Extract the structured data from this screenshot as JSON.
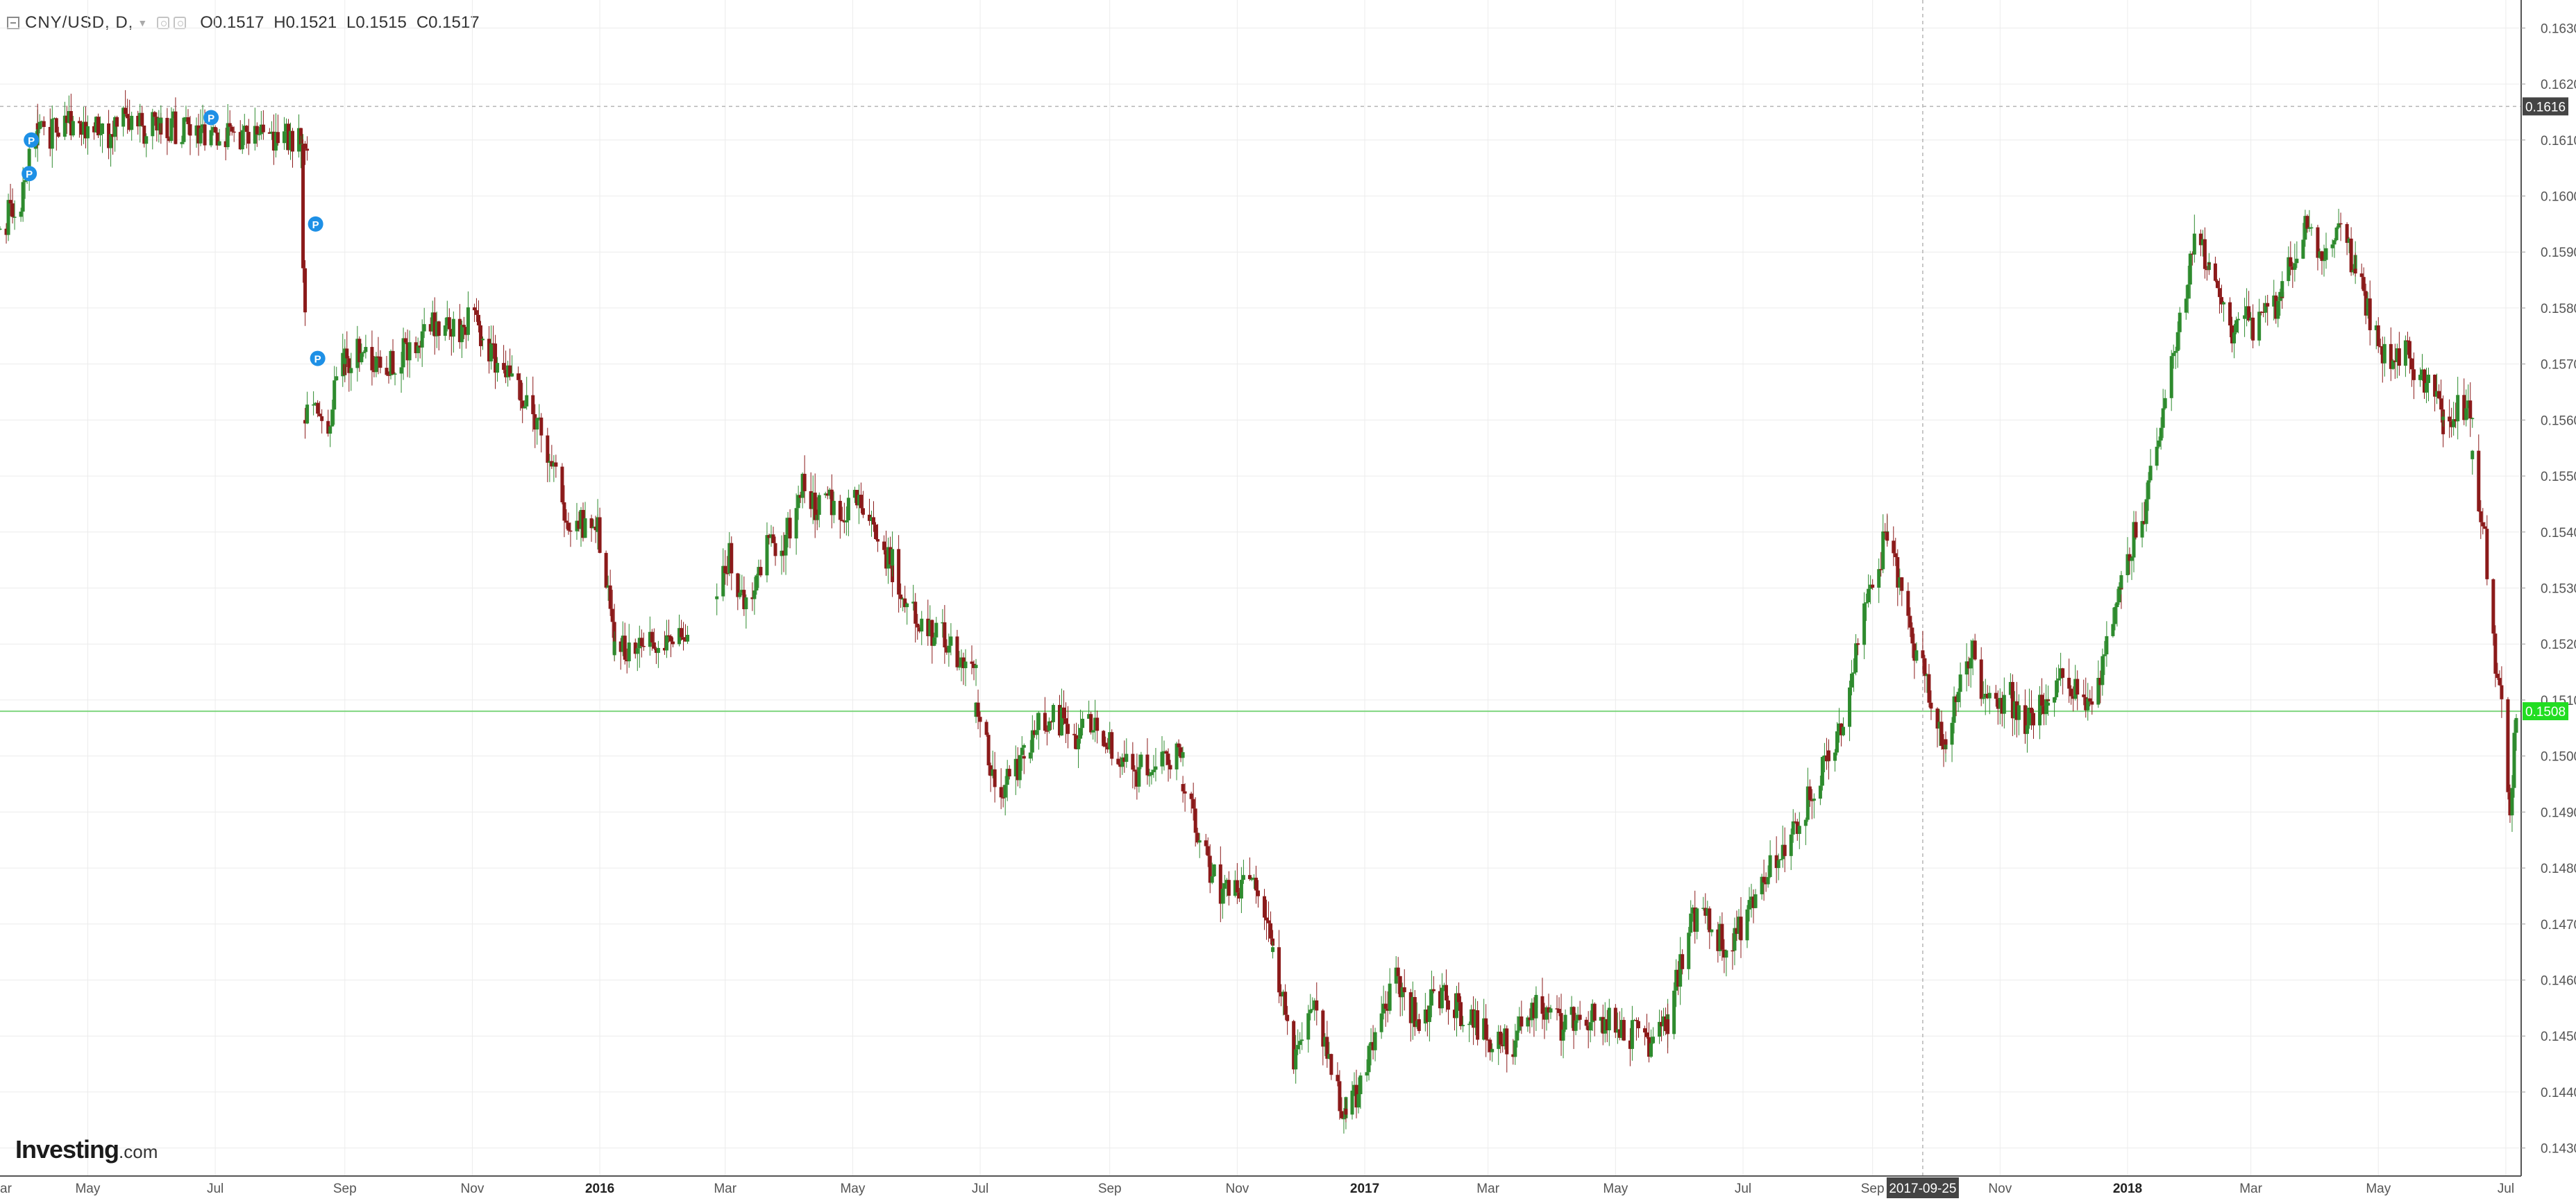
{
  "legend": {
    "symbol": "CNY/USD, D,",
    "open_label": "O",
    "open": "0.1517",
    "high_label": "H",
    "high": "0.1521",
    "low_label": "L",
    "low": "0.1515",
    "close_label": "C",
    "close": "0.1517"
  },
  "watermark": {
    "brand": "Investing",
    "suffix": ".com"
  },
  "colors": {
    "up": "#2e8b2e",
    "down": "#8b1a1a",
    "grid": "#ececec",
    "axis_text": "#555555",
    "current_price_line": "#7fd67f",
    "current_price_label_bg": "#22dd22",
    "hover_label_bg": "#444444",
    "marker": "#1e90e6"
  },
  "crosshair": {
    "date_label": "2017-09-25",
    "price_label": "0.1616"
  },
  "current_price_label": "0.1508",
  "chart_data": {
    "type": "candlestick",
    "title": "",
    "xlabel": "",
    "ylabel": "",
    "ylim": [
      0.1425,
      0.1635
    ],
    "xlim": [
      "2015-03-20",
      "2018-07-08"
    ],
    "grid": true,
    "crosshair": {
      "date": "2017-09-25",
      "price": 0.1616
    },
    "current_price": 0.1508,
    "y_ticks": [
      "0.1430",
      "0.1440",
      "0.1450",
      "0.1460",
      "0.1470",
      "0.1480",
      "0.1490",
      "0.1500",
      "0.1510",
      "0.1520",
      "0.1530",
      "0.1540",
      "0.1550",
      "0.1560",
      "0.1570",
      "0.1580",
      "0.1590",
      "0.1600",
      "0.1610",
      "0.1620",
      "0.1630"
    ],
    "x_ticks": [
      {
        "label": "ar",
        "date": "2015-03-15",
        "bold": false
      },
      {
        "label": "May",
        "date": "2015-05-01",
        "bold": false
      },
      {
        "label": "Jul",
        "date": "2015-07-01",
        "bold": false
      },
      {
        "label": "Sep",
        "date": "2015-09-01",
        "bold": false
      },
      {
        "label": "Nov",
        "date": "2015-11-01",
        "bold": false
      },
      {
        "label": "2016",
        "date": "2016-01-01",
        "bold": true
      },
      {
        "label": "Mar",
        "date": "2016-03-01",
        "bold": false
      },
      {
        "label": "May",
        "date": "2016-05-01",
        "bold": false
      },
      {
        "label": "Jul",
        "date": "2016-07-01",
        "bold": false
      },
      {
        "label": "Sep",
        "date": "2016-09-01",
        "bold": false
      },
      {
        "label": "Nov",
        "date": "2016-11-01",
        "bold": false
      },
      {
        "label": "2017",
        "date": "2017-01-01",
        "bold": true
      },
      {
        "label": "Mar",
        "date": "2017-03-01",
        "bold": false
      },
      {
        "label": "May",
        "date": "2017-05-01",
        "bold": false
      },
      {
        "label": "Jul",
        "date": "2017-07-01",
        "bold": false
      },
      {
        "label": "Sep",
        "date": "2017-09-01",
        "bold": false
      },
      {
        "label": "Nov",
        "date": "2017-11-01",
        "bold": false
      },
      {
        "label": "2018",
        "date": "2018-01-01",
        "bold": true
      },
      {
        "label": "Mar",
        "date": "2018-03-01",
        "bold": false
      },
      {
        "label": "May",
        "date": "2018-05-01",
        "bold": false
      },
      {
        "label": "Jul",
        "date": "2018-07-01",
        "bold": false
      }
    ],
    "markers": [
      {
        "label": "P",
        "date": "2015-04-03",
        "price": 0.1604
      },
      {
        "label": "P",
        "date": "2015-04-04",
        "price": 0.161
      },
      {
        "label": "P",
        "date": "2015-06-29",
        "price": 0.1614
      },
      {
        "label": "P",
        "date": "2015-08-18",
        "price": 0.1595
      },
      {
        "label": "P",
        "date": "2015-08-19",
        "price": 0.1571
      }
    ],
    "segments": [
      {
        "start": "2015-03-20",
        "end": "2015-04-07",
        "values": [
          0.1594,
          0.1596,
          0.1597,
          0.1598,
          0.1602,
          0.1609,
          0.1613
        ]
      },
      {
        "start": "2015-04-07",
        "end": "2015-06-05",
        "values": [
          0.1613,
          0.1611,
          0.1612,
          0.1614,
          0.1613,
          0.1611,
          0.1611,
          0.1613,
          0.1612,
          0.1612,
          0.1613
        ]
      },
      {
        "start": "2015-06-05",
        "end": "2015-08-14",
        "values": [
          0.1613,
          0.1612,
          0.1611,
          0.1611,
          0.161,
          0.1611,
          0.1611,
          0.161,
          0.161,
          0.161,
          0.161
        ]
      },
      {
        "start": "2015-08-11",
        "end": "2015-08-13",
        "values": [
          0.1608,
          0.159,
          0.158
        ]
      },
      {
        "start": "2015-08-13",
        "end": "2015-09-01",
        "values": [
          0.156,
          0.1565,
          0.1562,
          0.1558,
          0.1562,
          0.1567,
          0.157
        ]
      },
      {
        "start": "2015-09-01",
        "end": "2015-11-05",
        "values": [
          0.157,
          0.1573,
          0.1572,
          0.1568,
          0.1571,
          0.1573,
          0.1575,
          0.1578,
          0.1576,
          0.1575,
          0.1578,
          0.1576
        ]
      },
      {
        "start": "2015-11-05",
        "end": "2015-12-31",
        "values": [
          0.1576,
          0.1572,
          0.1568,
          0.1565,
          0.1563,
          0.1559,
          0.1553,
          0.1545,
          0.1541,
          0.1541,
          0.154
        ]
      },
      {
        "start": "2015-12-31",
        "end": "2016-01-08",
        "values": [
          0.154,
          0.1535,
          0.1527,
          0.1518
        ]
      },
      {
        "start": "2016-01-08",
        "end": "2016-02-12",
        "values": [
          0.1518,
          0.152,
          0.1521,
          0.152,
          0.1521,
          0.1521
        ]
      },
      {
        "start": "2016-02-26",
        "end": "2016-04-14",
        "values": [
          0.1528,
          0.1536,
          0.153,
          0.1527,
          0.1535,
          0.1538,
          0.1537,
          0.1544,
          0.1549,
          0.1544
        ]
      },
      {
        "start": "2016-04-14",
        "end": "2016-05-20",
        "values": [
          0.1544,
          0.1546,
          0.1542,
          0.1545,
          0.1543,
          0.1538,
          0.1534
        ]
      },
      {
        "start": "2016-05-20",
        "end": "2016-06-29",
        "values": [
          0.1534,
          0.1529,
          0.1525,
          0.1521,
          0.1523,
          0.152,
          0.1516,
          0.1517
        ]
      },
      {
        "start": "2016-06-29",
        "end": "2016-07-22",
        "values": [
          0.1507,
          0.1502,
          0.1496,
          0.1494,
          0.1497,
          0.15
        ]
      },
      {
        "start": "2016-07-22",
        "end": "2016-08-29",
        "values": [
          0.15,
          0.1505,
          0.1508,
          0.1506,
          0.1502,
          0.1506,
          0.1504
        ]
      },
      {
        "start": "2016-08-29",
        "end": "2016-10-06",
        "values": [
          0.1504,
          0.1499,
          0.1497,
          0.1499,
          0.15,
          0.1499
        ]
      },
      {
        "start": "2016-10-06",
        "end": "2016-11-18",
        "values": [
          0.1495,
          0.1487,
          0.148,
          0.1476,
          0.1475,
          0.1478,
          0.1473,
          0.1465
        ]
      },
      {
        "start": "2016-11-18",
        "end": "2016-12-23",
        "values": [
          0.1465,
          0.1455,
          0.1447,
          0.1452,
          0.1455,
          0.1447,
          0.144,
          0.1437
        ]
      },
      {
        "start": "2016-12-23",
        "end": "2017-01-27",
        "values": [
          0.1437,
          0.144,
          0.1448,
          0.1455,
          0.146,
          0.1455,
          0.1453
        ]
      },
      {
        "start": "2017-01-27",
        "end": "2017-03-24",
        "values": [
          0.1453,
          0.1456,
          0.1458,
          0.1455,
          0.1453,
          0.1451,
          0.1449,
          0.1448,
          0.1452,
          0.1455
        ]
      },
      {
        "start": "2017-03-24",
        "end": "2017-05-26",
        "values": [
          0.1455,
          0.1452,
          0.1452,
          0.1454,
          0.1453,
          0.1451,
          0.145,
          0.1449,
          0.1453
        ]
      },
      {
        "start": "2017-05-26",
        "end": "2017-06-30",
        "values": [
          0.1453,
          0.1462,
          0.147,
          0.1473,
          0.1468,
          0.1465,
          0.147
        ]
      },
      {
        "start": "2017-06-30",
        "end": "2017-08-11",
        "values": [
          0.147,
          0.1475,
          0.1478,
          0.1482,
          0.1486,
          0.149,
          0.1495,
          0.1501
        ]
      },
      {
        "start": "2017-08-11",
        "end": "2017-09-08",
        "values": [
          0.1501,
          0.1505,
          0.1515,
          0.1525,
          0.1533,
          0.154
        ]
      },
      {
        "start": "2017-09-08",
        "end": "2017-10-06",
        "values": [
          0.154,
          0.153,
          0.1522,
          0.1515,
          0.1508,
          0.1503
        ]
      },
      {
        "start": "2017-10-06",
        "end": "2017-11-24",
        "values": [
          0.1503,
          0.1513,
          0.152,
          0.151,
          0.1508,
          0.1511,
          0.1505,
          0.1508,
          0.1509
        ]
      },
      {
        "start": "2017-11-24",
        "end": "2017-12-29",
        "values": [
          0.1509,
          0.1516,
          0.1512,
          0.1511,
          0.1512,
          0.1523,
          0.153
        ]
      },
      {
        "start": "2017-12-29",
        "end": "2018-02-09",
        "values": [
          0.153,
          0.154,
          0.1545,
          0.1557,
          0.157,
          0.1582,
          0.1592,
          0.1588
        ]
      },
      {
        "start": "2018-02-09",
        "end": "2018-03-16",
        "values": [
          0.1588,
          0.158,
          0.1575,
          0.1578,
          0.1576,
          0.158,
          0.1582
        ]
      },
      {
        "start": "2018-03-16",
        "end": "2018-04-20",
        "values": [
          0.1582,
          0.159,
          0.1594,
          0.1588,
          0.1592,
          0.1593,
          0.1587
        ]
      },
      {
        "start": "2018-04-20",
        "end": "2018-06-01",
        "values": [
          0.1587,
          0.158,
          0.1572,
          0.157,
          0.1575,
          0.1567,
          0.1565,
          0.156
        ]
      },
      {
        "start": "2018-06-01",
        "end": "2018-06-15",
        "values": [
          0.156,
          0.1561,
          0.1563,
          0.1562
        ]
      },
      {
        "start": "2018-06-15",
        "end": "2018-07-06",
        "values": [
          0.1553,
          0.1545,
          0.1538,
          0.1525,
          0.1512,
          0.1505,
          0.1492,
          0.1507
        ]
      }
    ]
  }
}
